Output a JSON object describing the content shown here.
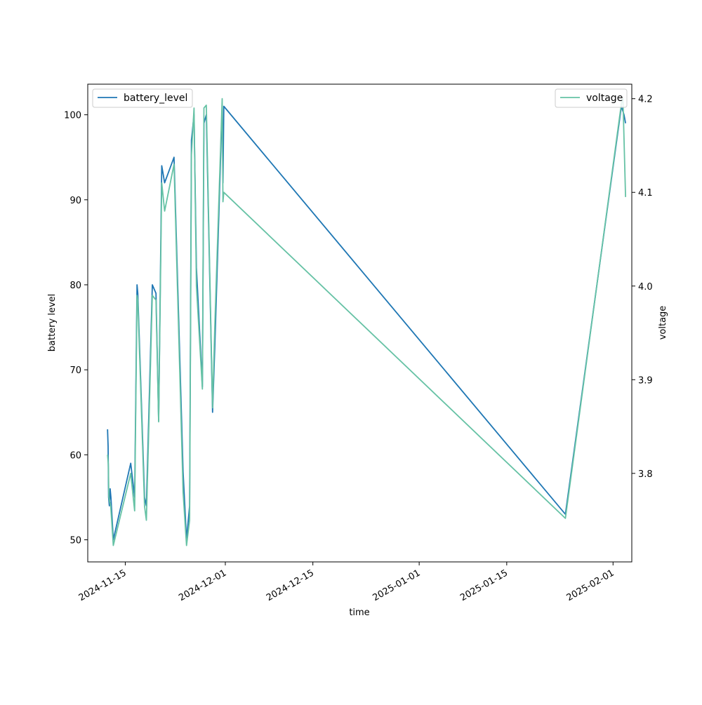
{
  "chart_data": {
    "type": "line",
    "xlabel": "time",
    "ylabel_left": "battery level",
    "ylabel_right": "voltage",
    "x_range": [
      "2024-11-09",
      "2025-02-04"
    ],
    "y_left_range": [
      47.4,
      103.6
    ],
    "y_right_range": [
      3.7055,
      4.2155
    ],
    "x_ticks": [
      "2024-11-15",
      "2024-12-01",
      "2024-12-15",
      "2025-01-01",
      "2025-01-15",
      "2025-02-01"
    ],
    "y_left_ticks": [
      50,
      60,
      70,
      80,
      90,
      100
    ],
    "y_right_ticks": [
      3.8,
      3.9,
      4.0,
      4.1,
      4.2
    ],
    "y_right_tick_labels": [
      "3.8",
      "3.9",
      "4.0",
      "4.1",
      "4.2"
    ],
    "series": [
      {
        "name": "battery_level",
        "axis": "left",
        "color": "#1f77b4",
        "legend_position": "upper-left",
        "points": [
          [
            "2024-11-12T04:00",
            63
          ],
          [
            "2024-11-12T06:00",
            61
          ],
          [
            "2024-11-12T08:00",
            55
          ],
          [
            "2024-11-12T11:00",
            54
          ],
          [
            "2024-11-12T14:00",
            56
          ],
          [
            "2024-11-12T17:00",
            55
          ],
          [
            "2024-11-13T02:00",
            50
          ],
          [
            "2024-11-15T21:00",
            59
          ],
          [
            "2024-11-16T12:00",
            55
          ],
          [
            "2024-11-16T21:00",
            80
          ],
          [
            "2024-11-17T00:00",
            79
          ],
          [
            "2024-11-18T02:00",
            55
          ],
          [
            "2024-11-18T09:00",
            54
          ],
          [
            "2024-11-19T08:00",
            80
          ],
          [
            "2024-11-19T22:00",
            79
          ],
          [
            "2024-11-20T08:00",
            64
          ],
          [
            "2024-11-20T20:00",
            94
          ],
          [
            "2024-11-21T07:00",
            92
          ],
          [
            "2024-11-22T19:00",
            95
          ],
          [
            "2024-11-24T06:00",
            58
          ],
          [
            "2024-11-24T19:00",
            50
          ],
          [
            "2024-11-25T07:00",
            54
          ],
          [
            "2024-11-25T14:00",
            97
          ],
          [
            "2024-11-26T00:00",
            100
          ],
          [
            "2024-11-26T09:00",
            82
          ],
          [
            "2024-11-27T08:00",
            68
          ],
          [
            "2024-11-27T14:00",
            99
          ],
          [
            "2024-11-27T23:00",
            100
          ],
          [
            "2024-11-28T23:00",
            65
          ],
          [
            "2024-11-29T08:00",
            73
          ],
          [
            "2024-11-30T12:00",
            101
          ],
          [
            "2024-11-30T15:00",
            92
          ],
          [
            "2024-11-30T18:00",
            101
          ],
          [
            "2025-01-24T09:00",
            53
          ],
          [
            "2025-02-02T08:00",
            101
          ],
          [
            "2025-02-02T18:00",
            100
          ],
          [
            "2025-02-03T00:00",
            99
          ]
        ]
      },
      {
        "name": "voltage",
        "axis": "right",
        "color": "#66c2a5",
        "legend_position": "upper-right",
        "points": [
          [
            "2024-11-12T04:00",
            3.82
          ],
          [
            "2024-11-12T07:00",
            3.81
          ],
          [
            "2024-11-12T09:00",
            3.775
          ],
          [
            "2024-11-12T12:00",
            3.77
          ],
          [
            "2024-11-12T16:00",
            3.765
          ],
          [
            "2024-11-13T02:00",
            3.723
          ],
          [
            "2024-11-15T21:00",
            3.8
          ],
          [
            "2024-11-16T12:00",
            3.76
          ],
          [
            "2024-11-16T21:00",
            3.99
          ],
          [
            "2024-11-17T00:00",
            3.985
          ],
          [
            "2024-11-18T02:00",
            3.765
          ],
          [
            "2024-11-18T09:00",
            3.75
          ],
          [
            "2024-11-19T08:00",
            3.99
          ],
          [
            "2024-11-19T22:00",
            3.985
          ],
          [
            "2024-11-20T08:00",
            3.855
          ],
          [
            "2024-11-20T20:00",
            4.11
          ],
          [
            "2024-11-21T07:00",
            4.08
          ],
          [
            "2024-11-22T19:00",
            4.13
          ],
          [
            "2024-11-24T06:00",
            3.78
          ],
          [
            "2024-11-24T19:00",
            3.723
          ],
          [
            "2024-11-25T07:00",
            3.75
          ],
          [
            "2024-11-25T14:00",
            4.14
          ],
          [
            "2024-11-26T00:00",
            4.19
          ],
          [
            "2024-11-26T09:00",
            4.0
          ],
          [
            "2024-11-27T08:00",
            3.89
          ],
          [
            "2024-11-27T14:00",
            4.19
          ],
          [
            "2024-11-27T23:00",
            4.193
          ],
          [
            "2024-11-28T23:00",
            3.87
          ],
          [
            "2024-11-29T08:00",
            3.96
          ],
          [
            "2024-11-30T12:00",
            4.2
          ],
          [
            "2024-11-30T15:00",
            4.09
          ],
          [
            "2024-11-30T18:00",
            4.1
          ],
          [
            "2025-01-24T09:00",
            3.752
          ],
          [
            "2025-02-02T08:00",
            4.195
          ],
          [
            "2025-02-02T14:00",
            4.2
          ],
          [
            "2025-02-03T00:00",
            4.095
          ]
        ]
      }
    ]
  }
}
